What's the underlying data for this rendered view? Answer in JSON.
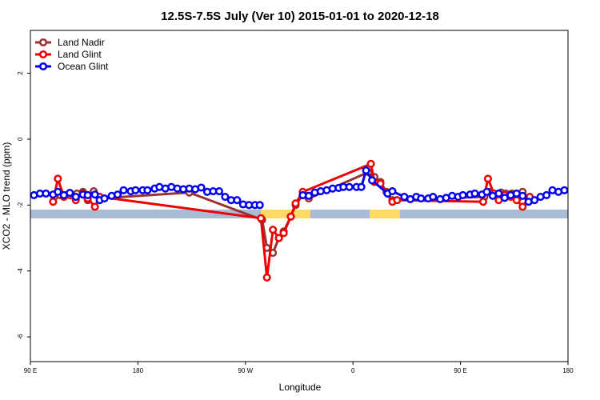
{
  "chart_data": {
    "type": "line",
    "title": "12.5S-7.5S July (Ver 10)   2015-01-01 to 2020-12-18",
    "xlabel": "Longitude",
    "ylabel": "XCO2 - MLO trend (ppm)",
    "xlim": [
      90,
      540
    ],
    "ylim": [
      -6.75,
      3.3
    ],
    "xticks": [
      {
        "value": 90,
        "label": "90 E"
      },
      {
        "value": 180,
        "label": "180"
      },
      {
        "value": 270,
        "label": "90 W"
      },
      {
        "value": 360,
        "label": "0"
      },
      {
        "value": 450,
        "label": "90 E"
      },
      {
        "value": 540,
        "label": "180"
      }
    ],
    "yticks": [
      -6,
      -4,
      -2,
      0,
      2
    ],
    "legend": "top-left",
    "series": [
      {
        "name": "Land Nadir",
        "color": "#993333",
        "x": [
          110,
          115,
          119,
          124,
          129,
          134,
          138,
          143,
          148,
          223,
          284,
          288,
          293,
          298,
          302,
          308,
          312,
          318,
          323,
          373,
          378,
          383,
          388,
          393,
          470,
          474,
          479,
          484,
          488,
          493,
          498,
          502,
          507
        ],
        "values": [
          -1.75,
          -1.7,
          -1.7,
          -1.7,
          -1.65,
          -1.6,
          -1.85,
          -1.58,
          -1.8,
          -1.62,
          -2.45,
          -3.3,
          -3.45,
          -3.0,
          -2.8,
          -2.35,
          -2.0,
          -1.7,
          -1.8,
          -1.0,
          -1.15,
          -1.3,
          -1.6,
          -1.85,
          -1.75,
          -1.6,
          -1.7,
          -1.62,
          -1.65,
          -1.65,
          -1.8,
          -1.6,
          -1.85
        ]
      },
      {
        "name": "Land Glint",
        "color": "#ee0000",
        "x": [
          109,
          113,
          118,
          123,
          128,
          134,
          138,
          144,
          148,
          283,
          288,
          293,
          298,
          302,
          308,
          312,
          318,
          375,
          378,
          383,
          393,
          397,
          469,
          473,
          478,
          482,
          487,
          492,
          497,
          502,
          508
        ],
        "values": [
          -1.9,
          -1.2,
          -1.75,
          -1.7,
          -1.85,
          -1.65,
          -1.8,
          -2.05,
          -1.75,
          -2.4,
          -4.2,
          -2.75,
          -3.0,
          -2.85,
          -2.35,
          -1.95,
          -1.6,
          -0.75,
          -1.3,
          -1.35,
          -1.9,
          -1.85,
          -1.9,
          -1.2,
          -1.65,
          -1.85,
          -1.7,
          -1.75,
          -1.85,
          -2.05,
          -1.75
        ]
      },
      {
        "name": "Ocean Glint",
        "color": "#0000ee",
        "x": [
          93,
          98,
          103,
          109,
          113,
          118,
          123,
          128,
          134,
          138,
          144,
          148,
          152,
          158,
          163,
          168,
          174,
          178,
          184,
          188,
          194,
          198,
          203,
          208,
          213,
          218,
          223,
          228,
          233,
          238,
          243,
          248,
          253,
          258,
          263,
          268,
          273,
          278,
          282,
          300,
          318,
          323,
          328,
          333,
          338,
          343,
          348,
          352,
          357,
          363,
          367,
          371,
          376,
          389,
          393,
          403,
          408,
          413,
          417,
          423,
          427,
          433,
          438,
          443,
          448,
          452,
          458,
          462,
          468,
          472,
          477,
          482,
          487,
          492,
          497,
          502,
          507,
          512,
          517,
          522,
          527,
          532,
          537
        ],
        "values": [
          -1.7,
          -1.65,
          -1.65,
          -1.68,
          -1.6,
          -1.7,
          -1.63,
          -1.75,
          -1.68,
          -1.7,
          -1.68,
          -1.85,
          -1.8,
          -1.72,
          -1.68,
          -1.55,
          -1.58,
          -1.55,
          -1.55,
          -1.55,
          -1.5,
          -1.45,
          -1.5,
          -1.45,
          -1.5,
          -1.52,
          -1.5,
          -1.52,
          -1.47,
          -1.6,
          -1.58,
          -1.58,
          -1.75,
          -1.85,
          -1.85,
          -1.98,
          -2.0,
          -2.0,
          -2.0,
          null,
          -1.7,
          -1.72,
          -1.62,
          -1.58,
          -1.55,
          -1.5,
          -1.48,
          -1.45,
          -1.45,
          -1.45,
          -1.45,
          -0.95,
          -1.25,
          -1.65,
          -1.58,
          -1.75,
          -1.82,
          -1.75,
          -1.8,
          -1.8,
          -1.75,
          -1.82,
          -1.78,
          -1.72,
          -1.75,
          -1.7,
          -1.68,
          -1.65,
          -1.68,
          -1.6,
          -1.72,
          -1.65,
          -1.78,
          -1.7,
          -1.65,
          -1.72,
          -1.9,
          -1.85,
          -1.75,
          -1.7,
          -1.55,
          -1.6,
          -1.55
        ]
      }
    ]
  }
}
